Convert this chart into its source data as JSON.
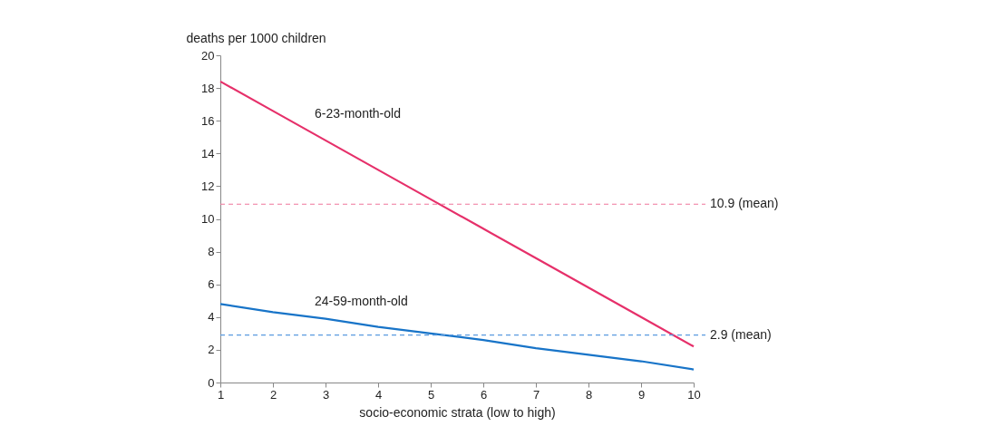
{
  "chart_data": {
    "type": "line",
    "xlabel": "socio-economic strata (low to high)",
    "ylabel": "deaths per 1000 children",
    "x": [
      1,
      2,
      3,
      4,
      5,
      6,
      7,
      8,
      9,
      10
    ],
    "series": [
      {
        "name": "6-23-month-old",
        "color": "#e6306a",
        "values": [
          18.4,
          16.6,
          14.8,
          13.0,
          11.2,
          9.4,
          7.6,
          5.8,
          4.0,
          2.2
        ]
      },
      {
        "name": "24-59-month-old",
        "color": "#1874c8",
        "values": [
          4.8,
          4.3,
          3.9,
          3.4,
          3.0,
          2.6,
          2.1,
          1.7,
          1.3,
          0.8
        ]
      }
    ],
    "ref_lines": [
      {
        "axis": "y",
        "value": 10.9,
        "label": "10.9 (mean)",
        "color": "#f0759a",
        "line_style": "dashed"
      },
      {
        "axis": "y",
        "value": 2.9,
        "label": "2.9 (mean)",
        "color": "#5a9be0",
        "line_style": "dashed"
      }
    ],
    "xlim": [
      1,
      10
    ],
    "xticks": [
      1,
      2,
      3,
      4,
      5,
      6,
      7,
      8,
      9,
      10
    ],
    "ylim": [
      0,
      20
    ],
    "yticks": [
      0,
      2,
      4,
      6,
      8,
      10,
      12,
      14,
      16,
      18,
      20
    ],
    "grid": false,
    "marker": "none",
    "line_style": "solid"
  }
}
